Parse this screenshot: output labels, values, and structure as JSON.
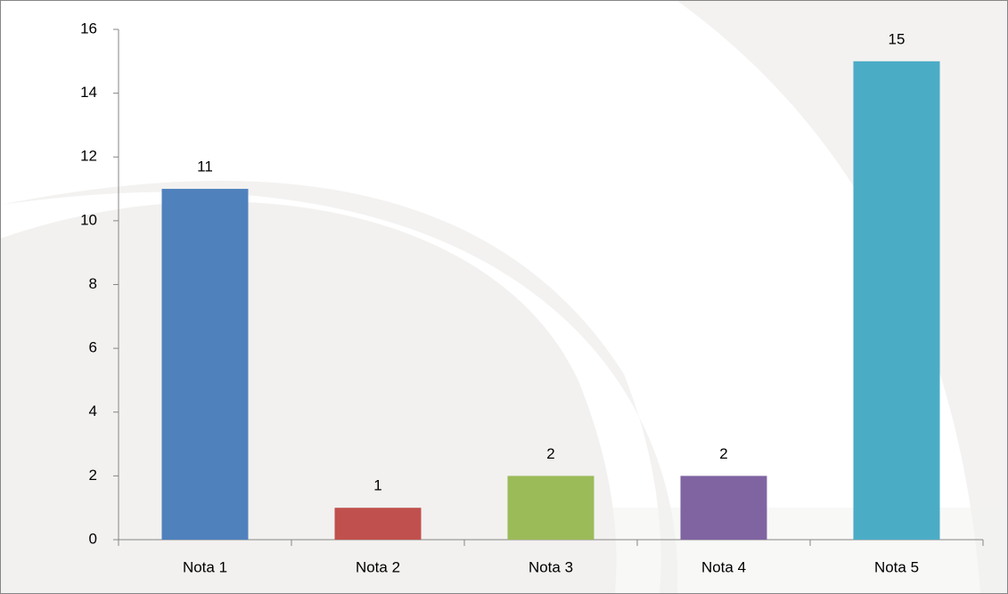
{
  "chart_data": {
    "type": "bar",
    "categories": [
      "Nota 1",
      "Nota 2",
      "Nota 3",
      "Nota 4",
      "Nota 5"
    ],
    "values": [
      11,
      1,
      2,
      2,
      15
    ],
    "colors": [
      "#4f81bd",
      "#c0504d",
      "#9bbb59",
      "#8064a2",
      "#4bacc6"
    ],
    "ylim": [
      0,
      16
    ],
    "yticks": [
      0,
      2,
      4,
      6,
      8,
      10,
      12,
      14,
      16
    ],
    "grid": false,
    "data_labels": true
  }
}
